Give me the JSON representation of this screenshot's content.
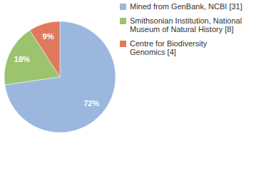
{
  "chart_data": {
    "type": "pie",
    "categories": [
      "Mined from GenBank, NCBI [31]",
      "Smithsonian Institution, National Museum of Natural History [8]",
      "Centre for Biodiversity Genomics [4]"
    ],
    "values": [
      72,
      18,
      9
    ],
    "value_labels": [
      "72%",
      "18%",
      "9%"
    ],
    "colors": [
      "#9bb7de",
      "#9cc46e",
      "#e07a5f"
    ],
    "data_labels": true,
    "legend": "top-right"
  }
}
